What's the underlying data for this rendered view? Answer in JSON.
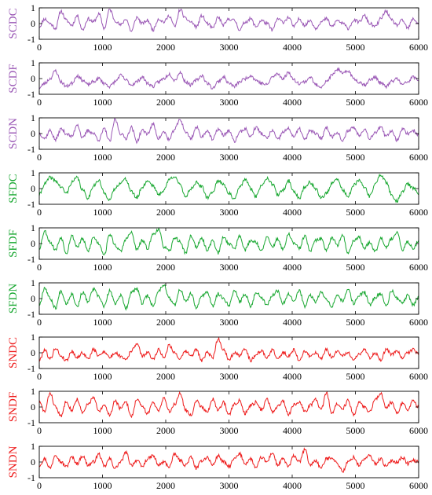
{
  "chart_data": [
    {
      "type": "line",
      "ylabel": "SCDC",
      "color": "#9b59b6",
      "xlim": [
        0,
        6000
      ],
      "ylim": [
        -1,
        1
      ],
      "xticks": [
        0,
        1000,
        2000,
        3000,
        4000,
        5000,
        6000
      ],
      "yticks": [
        -1,
        0,
        1
      ],
      "seed": 11,
      "y": [
        -0.2,
        0.3,
        0.0,
        -0.3,
        0.8,
        0.2,
        -0.1,
        0.5,
        -0.4,
        0.3,
        0.1,
        0.6,
        -0.3,
        0.9,
        0.2,
        -0.1,
        0.3,
        -0.5,
        0.4,
        0.0,
        0.2,
        -0.4,
        0.3,
        0.1,
        0.5,
        -0.2,
        0.9,
        0.3,
        0.1,
        -0.2,
        0.5,
        0.0,
        -0.3,
        0.4,
        -0.1,
        0.3,
        0.2,
        -0.4,
        0.1,
        0.3,
        -0.2,
        0.2,
        0.0,
        -0.4,
        0.3,
        0.1,
        0.4,
        -0.2,
        0.3,
        -0.1,
        0.2,
        -0.3,
        0.1,
        0.3,
        -0.2,
        0.2,
        0.0,
        -0.3,
        0.2,
        0.1,
        0.5,
        0.0,
        -0.2,
        0.3,
        0.8,
        0.2,
        -0.1,
        0.2,
        -0.3,
        0.3,
        0.0
      ]
    },
    {
      "type": "line",
      "ylabel": "SCDF",
      "color": "#9b59b6",
      "xlim": [
        0,
        6000
      ],
      "ylim": [
        -1,
        1
      ],
      "xticks": [
        0,
        1000,
        2000,
        3000,
        4000,
        5000,
        6000
      ],
      "yticks": [
        -1,
        0,
        1
      ],
      "seed": 23,
      "y": [
        -0.6,
        -0.3,
        0.0,
        0.5,
        -0.2,
        -0.5,
        -0.3,
        0.2,
        -0.1,
        -0.4,
        -0.2,
        0.0,
        -0.3,
        -0.5,
        -0.2,
        0.2,
        -0.1,
        -0.4,
        -0.2,
        0.1,
        -0.3,
        -0.5,
        -0.2,
        0.0,
        0.3,
        -0.1,
        0.4,
        -0.2,
        -0.4,
        -0.1,
        0.2,
        -0.3,
        -0.6,
        -0.2,
        0.1,
        -0.3,
        -0.5,
        -0.2,
        0.0,
        0.2,
        -0.1,
        -0.3,
        -0.4,
        0.1,
        0.3,
        0.0,
        0.4,
        -0.1,
        -0.3,
        -0.2,
        0.1,
        -0.4,
        -0.5,
        -0.2,
        0.2,
        0.6,
        0.3,
        0.5,
        0.0,
        -0.2,
        -0.4,
        -0.1,
        0.1,
        -0.3,
        -0.5,
        -0.2,
        0.0,
        -0.4,
        -0.2,
        0.1,
        -0.1
      ]
    },
    {
      "type": "line",
      "ylabel": "SCDN",
      "color": "#9b59b6",
      "xlim": [
        0,
        6000
      ],
      "ylim": [
        -1,
        1
      ],
      "xticks": [
        0,
        1000,
        2000,
        3000,
        4000,
        5000,
        6000
      ],
      "yticks": [
        -1,
        0,
        1
      ],
      "seed": 37,
      "y": [
        0.0,
        -0.3,
        0.2,
        -0.4,
        0.3,
        0.0,
        -0.2,
        0.6,
        -0.3,
        0.2,
        0.0,
        -0.4,
        0.3,
        -0.5,
        0.9,
        0.0,
        -0.3,
        0.4,
        -0.5,
        0.2,
        0.0,
        0.6,
        -0.3,
        0.1,
        -0.4,
        0.3,
        0.9,
        0.1,
        -0.3,
        0.4,
        -0.2,
        0.2,
        -0.4,
        0.3,
        -0.1,
        0.2,
        -0.5,
        0.1,
        0.3,
        -0.2,
        0.4,
        0.0,
        -0.3,
        0.2,
        -0.4,
        0.1,
        0.3,
        -0.2,
        0.3,
        -0.4,
        0.2,
        0.0,
        -0.3,
        0.4,
        -0.2,
        0.1,
        -0.5,
        0.2,
        0.4,
        -0.1,
        0.3,
        -0.3,
        0.1,
        0.4,
        -0.2,
        0.2,
        -0.4,
        0.3,
        0.0,
        0.2,
        -0.1
      ]
    },
    {
      "type": "line",
      "ylabel": "SFDC",
      "color": "#1aa832",
      "xlim": [
        0,
        6000
      ],
      "ylim": [
        -1,
        1
      ],
      "xticks": [
        0,
        1000,
        2000,
        3000,
        4000,
        5000,
        6000
      ],
      "yticks": [
        -1,
        0,
        1
      ],
      "seed": 41,
      "y": [
        -0.4,
        0.3,
        0.7,
        0.5,
        0.1,
        -0.3,
        0.4,
        0.7,
        -0.1,
        -0.6,
        0.2,
        0.5,
        -0.3,
        -0.7,
        0.0,
        0.4,
        0.6,
        -0.2,
        -0.6,
        0.1,
        0.5,
        0.2,
        -0.4,
        -0.1,
        0.6,
        0.8,
        0.2,
        -0.5,
        0.0,
        0.4,
        0.1,
        -0.6,
        -0.2,
        0.5,
        0.3,
        -0.3,
        -0.7,
        0.1,
        0.6,
        0.0,
        -0.5,
        0.2,
        0.7,
        0.3,
        -0.4,
        -0.1,
        0.5,
        -0.2,
        -0.6,
        0.1,
        0.4,
        0.0,
        -0.6,
        -0.3,
        0.3,
        0.6,
        -0.1,
        -0.5,
        0.2,
        0.5,
        0.1,
        -0.5,
        0.3,
        0.9,
        0.4,
        -0.4,
        -0.8,
        -0.2,
        0.3,
        0.0,
        -0.3
      ]
    },
    {
      "type": "line",
      "ylabel": "SFDF",
      "color": "#1aa832",
      "xlim": [
        0,
        6000
      ],
      "ylim": [
        -1,
        1
      ],
      "xticks": [
        0,
        1000,
        2000,
        3000,
        4000,
        5000,
        6000
      ],
      "yticks": [
        -1,
        0,
        1
      ],
      "seed": 53,
      "y": [
        -0.3,
        0.8,
        0.1,
        -0.4,
        0.4,
        -0.6,
        0.5,
        -0.2,
        0.3,
        -0.5,
        0.4,
        0.0,
        -0.7,
        0.6,
        -0.1,
        -0.5,
        0.3,
        0.7,
        -0.4,
        0.2,
        -0.3,
        0.6,
        0.9,
        -0.2,
        -0.5,
        0.4,
        0.1,
        -0.6,
        0.5,
        -0.2,
        0.3,
        -0.4,
        0.2,
        -0.6,
        0.4,
        0.0,
        -0.3,
        0.5,
        -0.4,
        0.2,
        0.1,
        -0.5,
        0.4,
        -0.2,
        0.3,
        -0.4,
        0.6,
        0.0,
        -0.3,
        0.5,
        -0.5,
        0.2,
        0.3,
        -0.4,
        0.4,
        -0.1,
        0.5,
        -0.6,
        0.2,
        0.4,
        -0.3,
        0.1,
        -0.5,
        0.4,
        -0.2,
        0.3,
        0.7,
        -0.4,
        0.1,
        -0.3,
        0.2
      ]
    },
    {
      "type": "line",
      "ylabel": "SFDN",
      "color": "#1aa832",
      "xlim": [
        0,
        6000
      ],
      "ylim": [
        -1,
        1
      ],
      "xticks": [
        0,
        1000,
        2000,
        3000,
        4000,
        5000,
        6000
      ],
      "yticks": [
        -1,
        0,
        1
      ],
      "seed": 67,
      "y": [
        -0.4,
        0.7,
        0.0,
        -0.6,
        0.5,
        -0.3,
        0.3,
        -0.5,
        0.4,
        -0.2,
        0.6,
        0.1,
        -0.5,
        0.5,
        -0.3,
        0.2,
        -0.6,
        0.4,
        0.6,
        -0.3,
        0.2,
        -0.5,
        0.5,
        0.9,
        0.0,
        -0.4,
        0.6,
        -0.2,
        0.3,
        -0.6,
        0.2,
        0.4,
        -0.5,
        0.3,
        0.0,
        -0.4,
        0.5,
        -0.2,
        0.3,
        -0.5,
        0.4,
        0.1,
        -0.4,
        0.2,
        0.5,
        -0.3,
        0.3,
        -0.1,
        0.5,
        -0.5,
        0.2,
        -0.2,
        0.4,
        0.0,
        -0.5,
        0.3,
        -0.2,
        0.6,
        -0.3,
        0.2,
        0.4,
        -0.4,
        0.1,
        0.3,
        -0.5,
        0.5,
        0.0,
        -0.3,
        0.2,
        -0.4,
        0.1
      ]
    },
    {
      "type": "line",
      "ylabel": "SNDC",
      "color": "#ee1c1c",
      "xlim": [
        0,
        6000
      ],
      "ylim": [
        -1,
        1
      ],
      "xticks": [
        0,
        1000,
        2000,
        3000,
        4000,
        5000,
        6000
      ],
      "yticks": [
        -1,
        0,
        1
      ],
      "seed": 79,
      "y": [
        -0.5,
        0.2,
        -0.4,
        0.3,
        -0.2,
        -0.5,
        0.1,
        -0.3,
        0.0,
        -0.4,
        0.2,
        -0.2,
        0.1,
        -0.3,
        0.0,
        -0.2,
        -0.4,
        0.1,
        0.6,
        -0.2,
        0.0,
        -0.4,
        0.2,
        -0.3,
        0.5,
        0.0,
        -0.4,
        0.1,
        -0.2,
        0.2,
        -0.5,
        0.0,
        -0.3,
        0.9,
        0.2,
        -0.4,
        0.0,
        -0.2,
        0.3,
        -0.5,
        -0.1,
        0.1,
        -0.3,
        0.2,
        -0.4,
        0.0,
        -0.2,
        0.2,
        -0.5,
        0.1,
        -0.2,
        0.0,
        -0.4,
        0.2,
        -0.3,
        0.1,
        -0.2,
        0.0,
        -0.4,
        -0.1,
        0.2,
        -0.3,
        0.0,
        -0.5,
        0.2,
        -0.1,
        0.1,
        -0.3,
        0.0,
        0.2,
        -0.1
      ]
    },
    {
      "type": "line",
      "ylabel": "SNDF",
      "color": "#ee1c1c",
      "xlim": [
        0,
        6000
      ],
      "ylim": [
        -1,
        1
      ],
      "xticks": [
        0,
        1000,
        2000,
        3000,
        4000,
        5000,
        6000
      ],
      "yticks": [
        -1,
        0,
        1
      ],
      "seed": 83,
      "y": [
        0.3,
        -0.3,
        0.9,
        0.0,
        -0.6,
        0.4,
        -0.2,
        0.5,
        -0.4,
        0.2,
        0.6,
        -0.3,
        0.1,
        -0.5,
        0.4,
        -0.1,
        0.3,
        -0.6,
        0.5,
        0.0,
        -0.4,
        0.3,
        -0.2,
        0.6,
        -0.3,
        0.2,
        0.9,
        -0.2,
        -0.5,
        0.4,
        0.0,
        -0.3,
        0.5,
        -0.2,
        0.3,
        -0.5,
        0.2,
        0.4,
        -0.4,
        0.1,
        0.3,
        -0.2,
        0.5,
        -0.3,
        0.0,
        0.4,
        -0.5,
        0.2,
        0.3,
        -0.3,
        0.1,
        0.5,
        -0.2,
        0.9,
        -0.4,
        0.2,
        -0.1,
        0.4,
        -0.5,
        0.3,
        0.0,
        -0.3,
        0.5,
        0.9,
        -0.1,
        0.3,
        -0.4,
        0.2,
        -0.2,
        0.4,
        0.0
      ]
    },
    {
      "type": "line",
      "ylabel": "SNDN",
      "color": "#ee1c1c",
      "xlim": [
        0,
        6000
      ],
      "ylim": [
        -1,
        1
      ],
      "xticks": [
        0,
        1000,
        2000,
        3000,
        4000,
        5000,
        6000
      ],
      "yticks": [
        -1,
        0,
        1
      ],
      "seed": 97,
      "y": [
        -0.2,
        0.2,
        -0.4,
        0.5,
        0.0,
        -0.3,
        0.3,
        -0.1,
        0.4,
        -0.2,
        0.0,
        0.5,
        -0.3,
        0.2,
        -0.4,
        0.0,
        0.6,
        -0.2,
        0.1,
        -0.3,
        0.2,
        0.4,
        -0.2,
        0.0,
        -0.3,
        0.5,
        0.1,
        -0.2,
        0.3,
        -0.4,
        0.1,
        0.3,
        -0.2,
        0.4,
        0.0,
        -0.3,
        0.2,
        0.5,
        -0.1,
        0.2,
        -0.4,
        0.3,
        0.0,
        0.6,
        -0.2,
        0.2,
        -0.3,
        0.4,
        0.0,
        0.8,
        -0.2,
        0.1,
        -0.4,
        0.2,
        0.3,
        -0.1,
        -0.6,
        0.0,
        0.3,
        -0.2,
        0.2,
        0.4,
        -0.1,
        0.2,
        -0.3,
        0.1,
        0.0,
        0.3,
        -0.1,
        0.1,
        0.0
      ]
    }
  ]
}
